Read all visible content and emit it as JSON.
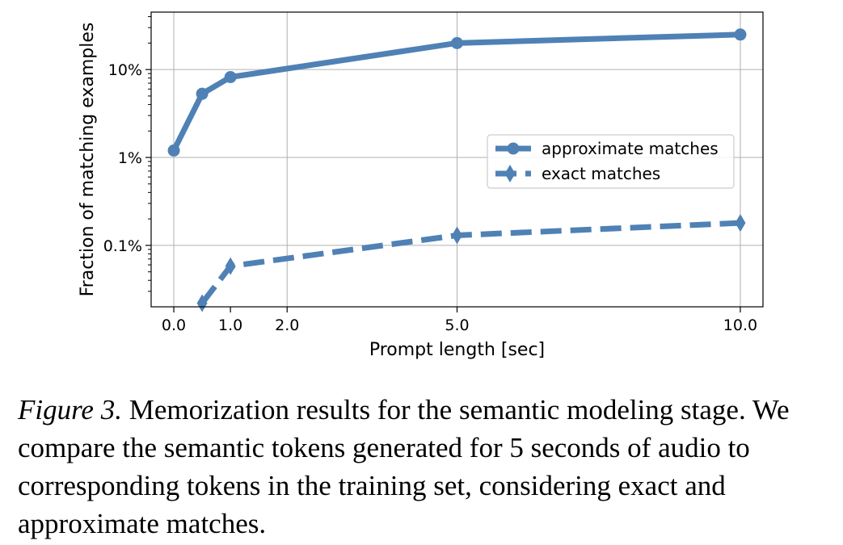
{
  "chart_data": {
    "type": "line",
    "xlabel": "Prompt length [sec]",
    "ylabel": "Fraction of matching examples",
    "xscale": "linear",
    "yscale": "log",
    "xlim": [
      -0.4,
      10.4
    ],
    "ylim": [
      0.0002,
      0.45
    ],
    "x_ticks": [
      0.0,
      1.0,
      2.0,
      5.0,
      10.0
    ],
    "x_tick_labels": [
      "0.0",
      "1.0",
      "2.0",
      "5.0",
      "10.0"
    ],
    "x_grid": [
      0.0,
      2.0,
      5.0,
      10.0
    ],
    "y_ticks": [
      0.001,
      0.01,
      0.1
    ],
    "y_tick_labels": [
      "0.1%",
      "1%",
      "10%"
    ],
    "grid": true,
    "legend_position": "center-right",
    "series": [
      {
        "name": "approximate matches",
        "marker": "circle",
        "linestyle": "solid",
        "color": "#4f81b5",
        "x": [
          0.0,
          0.5,
          1.0,
          5.0,
          10.0
        ],
        "y": [
          0.012,
          0.053,
          0.082,
          0.2,
          0.25
        ]
      },
      {
        "name": "exact matches",
        "marker": "diamond",
        "linestyle": "dashed",
        "color": "#4f81b5",
        "x": [
          0.5,
          1.0,
          5.0,
          10.0
        ],
        "y": [
          0.00022,
          0.00058,
          0.0013,
          0.0018
        ]
      }
    ]
  },
  "caption": {
    "label": "Figure 3.",
    "text": " Memorization results for the semantic modeling stage. We compare the semantic tokens generated for 5 seconds of audio to corresponding tokens in the training set, considering exact and approximate matches."
  }
}
